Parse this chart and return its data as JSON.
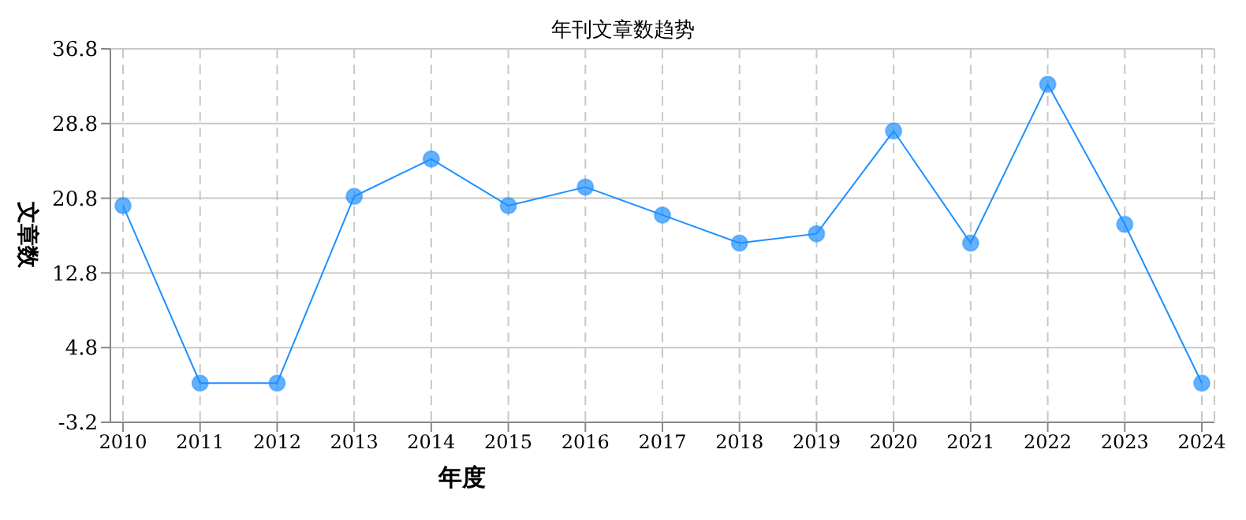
{
  "chart_data": {
    "type": "line",
    "title": "年刊文章数趋势",
    "xlabel": "年度",
    "ylabel": "文章数",
    "categories": [
      "2010",
      "2011",
      "2012",
      "2013",
      "2014",
      "2015",
      "2016",
      "2017",
      "2018",
      "2019",
      "2020",
      "2021",
      "2022",
      "2023",
      "2024"
    ],
    "series": [
      {
        "color": "#1e90ff",
        "values": [
          20,
          1,
          1,
          21,
          25,
          20,
          22,
          19,
          16,
          17,
          28,
          16,
          33,
          18,
          1
        ]
      }
    ],
    "ylim": [
      -3.2,
      36.8
    ],
    "yticks": [
      -3.2,
      4.8,
      12.8,
      20.8,
      28.8,
      36.8
    ],
    "grid": true,
    "marker": "circle",
    "line_style": "solid",
    "legend": false
  }
}
